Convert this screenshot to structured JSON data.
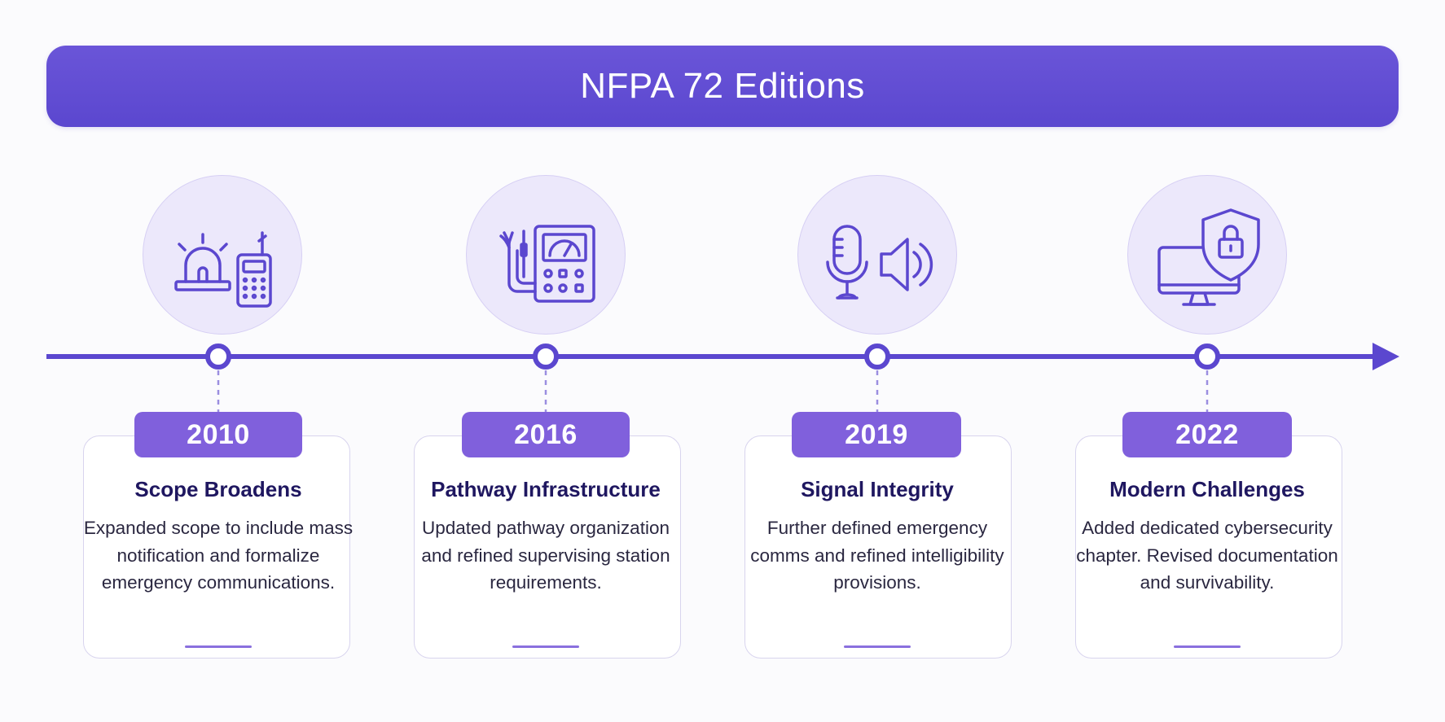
{
  "header": {
    "title": "NFPA 72 Editions"
  },
  "colors": {
    "accent": "#5b47cf",
    "badge": "#8060dc",
    "icon_fill": "#ece8fb",
    "title_text": "#1f1760"
  },
  "milestones": [
    {
      "year": "2010",
      "title": "Scope Broadens",
      "description": "Expanded scope to include mass notification and formalize emergency communications.",
      "icon": "alarm-beacon-and-radio-icon"
    },
    {
      "year": "2016",
      "title": "Pathway Infrastructure",
      "description": "Updated pathway organization and refined supervising station requirements.",
      "icon": "control-panel-and-cables-icon"
    },
    {
      "year": "2019",
      "title": "Signal Integrity",
      "description": "Further defined emergency comms and refined intelligibility provisions.",
      "icon": "microphone-and-speaker-icon"
    },
    {
      "year": "2022",
      "title": "Modern Challenges",
      "description": "Added dedicated cybersecurity chapter. Revised documentation and survivability.",
      "icon": "computer-with-security-shield-icon"
    }
  ]
}
